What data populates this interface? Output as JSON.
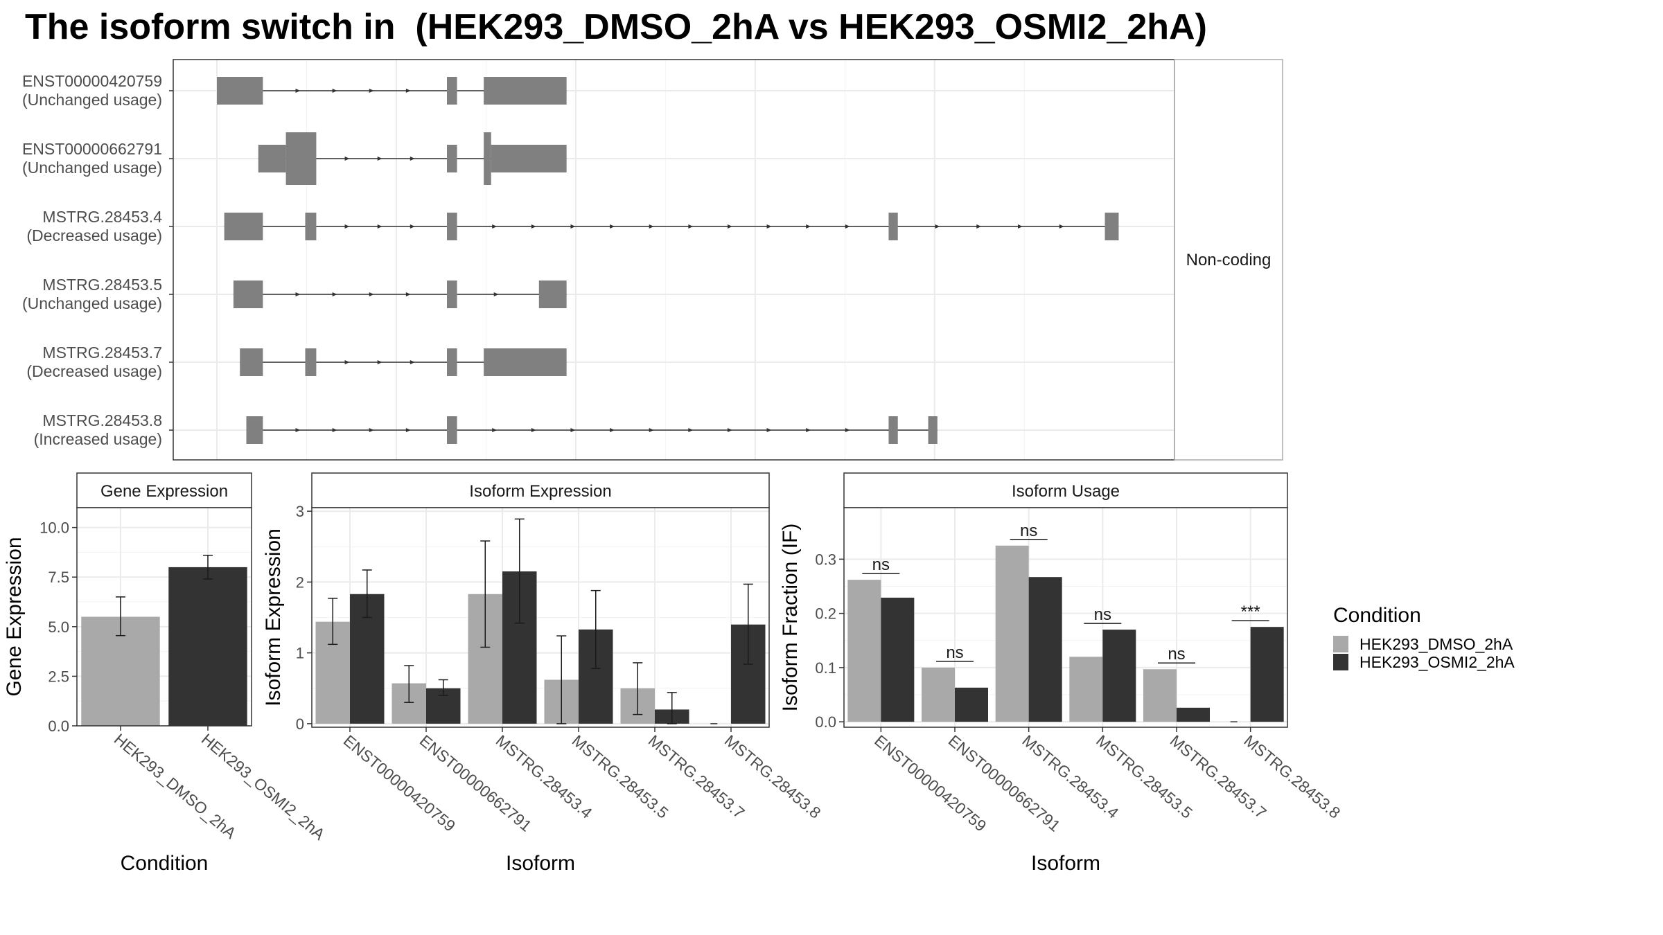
{
  "title": "The isoform switch in  (HEK293_DMSO_2hA vs HEK293_OSMI2_2hA)",
  "colors": {
    "dmso": "#a9a9a9",
    "osmi": "#333333",
    "exon": "#808080",
    "intron": "#333333"
  },
  "chart_data": [
    {
      "type": "diagram",
      "name": "transcript-structures",
      "facet_label": "Non-coding",
      "transcripts": [
        {
          "id": "ENST00000420759",
          "usage": "(Unchanged usage)",
          "exons": [
            [
              0.0,
              0.05,
              "tall"
            ],
            [
              0.25,
              0.261,
              "tall"
            ],
            [
              0.29,
              0.38,
              "tall"
            ]
          ]
        },
        {
          "id": "ENST00000662791",
          "usage": "(Unchanged usage)",
          "exons": [
            [
              0.045,
              0.075,
              "tall"
            ],
            [
              0.075,
              0.108,
              "xtall"
            ],
            [
              0.25,
              0.261,
              "tall"
            ],
            [
              0.29,
              0.298,
              "xtall"
            ],
            [
              0.298,
              0.38,
              "tall"
            ]
          ]
        },
        {
          "id": "MSTRG.28453.4",
          "usage": "(Decreased usage)",
          "exons": [
            [
              0.008,
              0.05,
              "tall"
            ],
            [
              0.096,
              0.108,
              "tall"
            ],
            [
              0.25,
              0.261,
              "tall"
            ],
            [
              0.73,
              0.74,
              "tall"
            ],
            [
              0.965,
              0.98,
              "tall"
            ]
          ]
        },
        {
          "id": "MSTRG.28453.5",
          "usage": "(Unchanged usage)",
          "exons": [
            [
              0.018,
              0.05,
              "tall"
            ],
            [
              0.25,
              0.261,
              "tall"
            ],
            [
              0.35,
              0.38,
              "tall"
            ]
          ]
        },
        {
          "id": "MSTRG.28453.7",
          "usage": "(Decreased usage)",
          "exons": [
            [
              0.025,
              0.05,
              "tall"
            ],
            [
              0.096,
              0.108,
              "tall"
            ],
            [
              0.25,
              0.261,
              "tall"
            ],
            [
              0.29,
              0.38,
              "tall"
            ]
          ]
        },
        {
          "id": "MSTRG.28453.8",
          "usage": "(Increased usage)",
          "exons": [
            [
              0.032,
              0.05,
              "tall"
            ],
            [
              0.25,
              0.261,
              "tall"
            ],
            [
              0.73,
              0.74,
              "tall"
            ],
            [
              0.773,
              0.783,
              "tall"
            ]
          ]
        }
      ]
    },
    {
      "type": "bar",
      "name": "gene-expression",
      "title": "Gene Expression",
      "xlabel": "Condition",
      "ylabel": "Gene Expression",
      "ylim": [
        0,
        11
      ],
      "yticks": [
        0.0,
        2.5,
        5.0,
        7.5,
        10.0
      ],
      "ytick_labels": [
        "0.0",
        "2.5",
        "5.0",
        "7.5",
        "10.0"
      ],
      "categories": [
        "HEK293_DMSO_2hA",
        "HEK293_OSMI2_2hA"
      ],
      "values": [
        5.5,
        8.0
      ],
      "err_low": [
        4.55,
        7.4
      ],
      "err_high": [
        6.5,
        8.6
      ],
      "grid": true
    },
    {
      "type": "bar",
      "name": "isoform-expression",
      "title": "Isoform Expression",
      "xlabel": "Isoform",
      "ylabel": "Isoform Expression",
      "ylim": [
        -0.05,
        3.05
      ],
      "yticks": [
        0,
        1,
        2,
        3
      ],
      "ytick_labels": [
        "0",
        "1",
        "2",
        "3"
      ],
      "categories": [
        "ENST00000420759",
        "ENST00000662791",
        "MSTRG.28453.4",
        "MSTRG.28453.5",
        "MSTRG.28453.7",
        "MSTRG.28453.8"
      ],
      "series": [
        {
          "name": "HEK293_DMSO_2hA",
          "values": [
            1.44,
            0.57,
            1.83,
            0.62,
            0.5,
            0.0
          ],
          "err_low": [
            1.12,
            0.3,
            1.08,
            0.0,
            0.13,
            0.0
          ],
          "err_high": [
            1.77,
            0.82,
            2.58,
            1.24,
            0.86,
            0.0
          ]
        },
        {
          "name": "HEK293_OSMI2_2hA",
          "values": [
            1.83,
            0.5,
            2.15,
            1.33,
            0.2,
            1.4
          ],
          "err_low": [
            1.5,
            0.4,
            1.42,
            0.78,
            0.0,
            0.84
          ],
          "err_high": [
            2.17,
            0.62,
            2.89,
            1.88,
            0.44,
            1.97
          ]
        }
      ],
      "grid": true
    },
    {
      "type": "bar",
      "name": "isoform-usage",
      "title": "Isoform Usage",
      "xlabel": "Isoform",
      "ylabel": "Isoform Fraction (IF)",
      "ylim": [
        -0.01,
        0.395
      ],
      "yticks": [
        0.0,
        0.1,
        0.2,
        0.3
      ],
      "ytick_labels": [
        "0.0",
        "0.1",
        "0.2",
        "0.3"
      ],
      "categories": [
        "ENST00000420759",
        "ENST00000662791",
        "MSTRG.28453.4",
        "MSTRG.28453.5",
        "MSTRG.28453.7",
        "MSTRG.28453.8"
      ],
      "series": [
        {
          "name": "HEK293_DMSO_2hA",
          "values": [
            0.262,
            0.1,
            0.325,
            0.12,
            0.097,
            0.0
          ]
        },
        {
          "name": "HEK293_OSMI2_2hA",
          "values": [
            0.229,
            0.063,
            0.267,
            0.17,
            0.026,
            0.175
          ]
        }
      ],
      "significance": [
        "ns",
        "ns",
        "ns",
        "ns",
        "ns",
        "***"
      ],
      "grid": true
    }
  ],
  "legend": {
    "title": "Condition",
    "entries": [
      "HEK293_DMSO_2hA",
      "HEK293_OSMI2_2hA"
    ]
  }
}
